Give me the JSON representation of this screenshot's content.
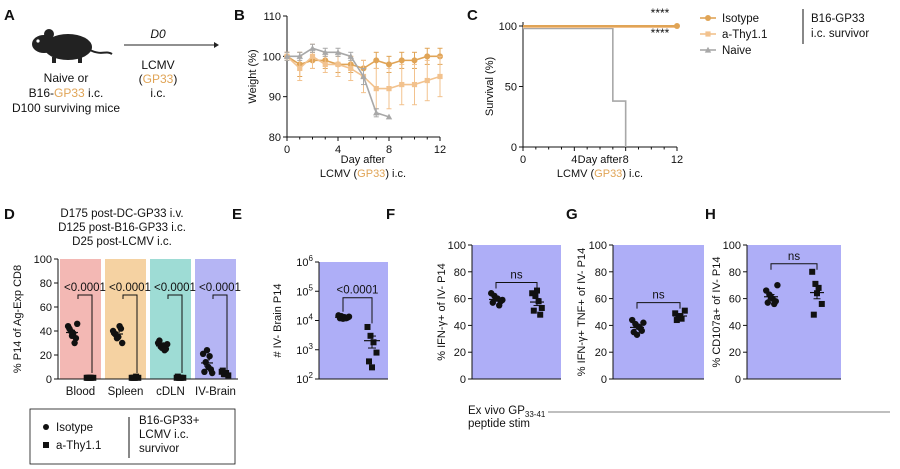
{
  "panels": {
    "A": {
      "letter": "A",
      "timepoint": "D0",
      "mouse_lines": [
        "Naive or",
        "B16-",
        "GP33",
        " i.c.",
        "D100 surviving mice"
      ],
      "treatment_lines": [
        "LCMV",
        "(",
        "GP33",
        ")",
        "i.c."
      ]
    },
    "B": {
      "letter": "B"
    },
    "C": {
      "letter": "C"
    },
    "D": {
      "letter": "D",
      "conditions": [
        "D175 post-DC-GP33 i.v.",
        "D125 post-B16-GP33 i.c.",
        "D25 post-LCMV i.c."
      ]
    },
    "E": {
      "letter": "E"
    },
    "F": {
      "letter": "F"
    },
    "G": {
      "letter": "G"
    },
    "H": {
      "letter": "H"
    }
  },
  "legend_top": {
    "items": [
      "Isotype",
      "a-Thy1.1",
      "Naive"
    ],
    "group_label": [
      "B16-GP33",
      "i.c. survivor"
    ]
  },
  "legend_bottom": {
    "items": [
      "Isotype",
      "a-Thy1.1"
    ],
    "group_label": [
      "B16-GP33+",
      "LCMV i.c.",
      "survivor"
    ]
  },
  "footer": {
    "text": "Ex vivo GP",
    "sub": "33-41",
    "text2": "peptide stim"
  },
  "colors": {
    "isotype": "#e0a456",
    "athy": "#f2c28e",
    "naive": "#a8a8a8",
    "lavender": "#aeaef7",
    "blood": "#f3b8b4",
    "spleen": "#f5d2a2",
    "cdln": "#9edcd5",
    "ivbrain": "#b5b5f4",
    "gp33": "#e0a456"
  },
  "chart_data": [
    {
      "id": "B",
      "type": "line",
      "ylabel": "Weight (%)",
      "xlabel": [
        "Day after",
        "LCMV (",
        "GP33",
        ") i.c."
      ],
      "xlim": [
        0,
        12
      ],
      "ylim": [
        80,
        110
      ],
      "xticks": [
        "0",
        "4",
        "8",
        "12"
      ],
      "yticks": [
        "80",
        "90",
        "100",
        "110"
      ],
      "series": [
        {
          "name": "Isotype",
          "x": [
            0,
            1,
            2,
            3,
            4,
            5,
            6,
            7,
            8,
            9,
            10,
            11,
            12
          ],
          "y": [
            100,
            98,
            99,
            99,
            98,
            98,
            97,
            99,
            98,
            99,
            99,
            100,
            100
          ],
          "err": [
            1,
            3,
            2,
            2,
            2,
            2,
            2,
            2,
            2,
            2,
            2,
            2,
            2
          ]
        },
        {
          "name": "a-Thy1.1",
          "x": [
            0,
            1,
            2,
            3,
            4,
            5,
            6,
            7,
            8,
            9,
            10,
            11,
            12
          ],
          "y": [
            100,
            97,
            100,
            98,
            98,
            97,
            95,
            92,
            92,
            93,
            93,
            94,
            95
          ],
          "err": [
            1,
            3,
            3,
            2,
            3,
            3,
            4,
            5,
            5,
            5,
            5,
            5,
            5
          ]
        },
        {
          "name": "Naive",
          "x": [
            0,
            1,
            2,
            3,
            4,
            5,
            6,
            7,
            8
          ],
          "y": [
            100,
            100,
            102,
            101,
            101,
            100,
            95,
            86,
            85
          ],
          "err": [
            1,
            1,
            1,
            1,
            1,
            1,
            2,
            1,
            0
          ]
        }
      ]
    },
    {
      "id": "C",
      "type": "line",
      "ylabel": "Survival (%)",
      "xlabel": [
        "Day after",
        "LCMV (",
        "GP33",
        ") i.c."
      ],
      "xlim": [
        0,
        12
      ],
      "ylim": [
        0,
        100
      ],
      "xticks": [
        "0",
        "4",
        "8",
        "12"
      ],
      "yticks": [
        "0",
        "50",
        "100"
      ],
      "series": [
        {
          "name": "Isotype",
          "x": [
            0,
            12
          ],
          "y": [
            100,
            100
          ]
        },
        {
          "name": "a-Thy1.1",
          "x": [
            0,
            12
          ],
          "y": [
            99,
            99
          ]
        },
        {
          "name": "Naive",
          "x": [
            0,
            7,
            7,
            8,
            8
          ],
          "y": [
            98,
            98,
            38,
            38,
            0
          ]
        }
      ],
      "annotations": [
        "****",
        "****"
      ]
    },
    {
      "id": "D",
      "type": "scatter",
      "ylabel": "% P14 of Ag-Exp CD8",
      "ylim": [
        0,
        100
      ],
      "yticks": [
        "0",
        "20",
        "40",
        "60",
        "80",
        "100"
      ],
      "categories": [
        "Blood",
        "Spleen",
        "cDLN",
        "IV-Brain"
      ],
      "pvalues": [
        "<0.0001",
        "<0.0001",
        "<0.0001",
        "<0.0001"
      ],
      "series": [
        {
          "name": "Isotype",
          "groups": [
            [
              44,
              40,
              38,
              34,
              42,
              36,
              30,
              46
            ],
            [
              40,
              37,
              35,
              42,
              38,
              34,
              44,
              30
            ],
            [
              30,
              27,
              28,
              25,
              32,
              26,
              24,
              29
            ],
            [
              21,
              14,
              10,
              8,
              6,
              24,
              19,
              5
            ]
          ]
        },
        {
          "name": "a-Thy1.1",
          "groups": [
            [
              1,
              1,
              1,
              1,
              1,
              1
            ],
            [
              1,
              1,
              2,
              1,
              1,
              1
            ],
            [
              1,
              1,
              1,
              1,
              2,
              1
            ],
            [
              6,
              4,
              5,
              3,
              7,
              4
            ]
          ]
        }
      ]
    },
    {
      "id": "E",
      "type": "scatter",
      "ylabel": "# IV- Brain P14",
      "yscale": "log",
      "ylim": [
        100,
        1000000
      ],
      "yticks": [
        "10^2",
        "10^3",
        "10^4",
        "10^5",
        "10^6"
      ],
      "pvalue": "<0.0001",
      "series": [
        {
          "name": "Isotype",
          "values": [
            15000,
            14000,
            13000,
            12500,
            12000,
            11500,
            12000,
            13500
          ]
        },
        {
          "name": "a-Thy1.1",
          "values": [
            6000,
            3000,
            1800,
            800,
            400,
            250
          ]
        }
      ]
    },
    {
      "id": "F",
      "type": "scatter",
      "ylabel": "% IFN-γ+ of IV- P14",
      "ylim": [
        0,
        100
      ],
      "yticks": [
        "0",
        "20",
        "40",
        "60",
        "80",
        "100"
      ],
      "pvalue": "ns",
      "series": [
        {
          "name": "Isotype",
          "values": [
            64,
            62,
            60,
            58,
            57,
            60,
            55,
            59
          ]
        },
        {
          "name": "a-Thy1.1",
          "values": [
            64,
            62,
            58,
            53,
            51,
            66,
            48
          ]
        }
      ]
    },
    {
      "id": "G",
      "type": "scatter",
      "ylabel": "% IFN-γ+ TNF+ of IV- P14",
      "ylim": [
        0,
        100
      ],
      "yticks": [
        "0",
        "20",
        "40",
        "60",
        "80",
        "100"
      ],
      "pvalue": "ns",
      "series": [
        {
          "name": "Isotype",
          "values": [
            44,
            41,
            39,
            36,
            35,
            33,
            38,
            42
          ]
        },
        {
          "name": "a-Thy1.1",
          "values": [
            49,
            46,
            45,
            51,
            44,
            47
          ]
        }
      ]
    },
    {
      "id": "H",
      "type": "scatter",
      "ylabel": "% CD107a+ of IV- P14",
      "ylim": [
        0,
        100
      ],
      "yticks": [
        "0",
        "20",
        "40",
        "60",
        "80",
        "100"
      ],
      "pvalue": "ns",
      "series": [
        {
          "name": "Isotype",
          "values": [
            66,
            63,
            60,
            58,
            57,
            61,
            56,
            70
          ]
        },
        {
          "name": "a-Thy1.1",
          "values": [
            80,
            71,
            68,
            56,
            48,
            64
          ]
        }
      ]
    }
  ]
}
